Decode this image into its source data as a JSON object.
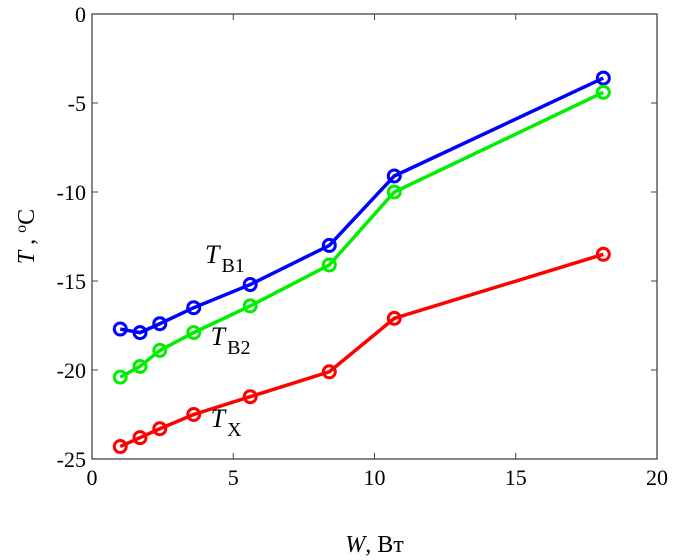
{
  "chart_data": {
    "type": "line",
    "title": "",
    "xlabel": "W, Вт",
    "xlabel_italic": "W",
    "xlabel_rest": ", Вт",
    "ylabel": "T , oC",
    "xlim": [
      0,
      20
    ],
    "ylim": [
      -25,
      0
    ],
    "xticks": [
      0,
      5,
      10,
      15,
      20
    ],
    "yticks": [
      0,
      -5,
      -10,
      -15,
      -20,
      -25
    ],
    "grid": false,
    "series": [
      {
        "name": "TB1",
        "main": "T",
        "sub": "B1",
        "color": "#0000ff",
        "x": [
          1.0,
          1.7,
          2.4,
          3.6,
          5.6,
          8.4,
          10.7,
          18.1
        ],
        "y": [
          -17.7,
          -17.9,
          -17.4,
          -16.5,
          -15.2,
          -13.0,
          -9.1,
          -3.6
        ],
        "label_at": [
          4.0,
          -14.0
        ],
        "label_anchor": "start"
      },
      {
        "name": "TB2",
        "main": "T",
        "sub": "B2",
        "color": "#00ee00",
        "x": [
          1.0,
          1.7,
          2.4,
          3.6,
          5.6,
          8.4,
          10.7,
          18.1
        ],
        "y": [
          -20.4,
          -19.8,
          -18.9,
          -17.9,
          -16.4,
          -14.1,
          -10.0,
          -4.4
        ],
        "label_at": [
          4.2,
          -18.6
        ],
        "label_anchor": "start"
      },
      {
        "name": "TX",
        "main": "T",
        "sub": "X",
        "color": "#ff0000",
        "x": [
          1.0,
          1.7,
          2.4,
          3.6,
          5.6,
          8.4,
          10.7,
          18.1
        ],
        "y": [
          -24.3,
          -23.8,
          -23.3,
          -22.5,
          -21.5,
          -20.1,
          -17.1,
          -13.5
        ],
        "label_at": [
          4.2,
          -23.2
        ],
        "label_anchor": "start"
      }
    ]
  }
}
